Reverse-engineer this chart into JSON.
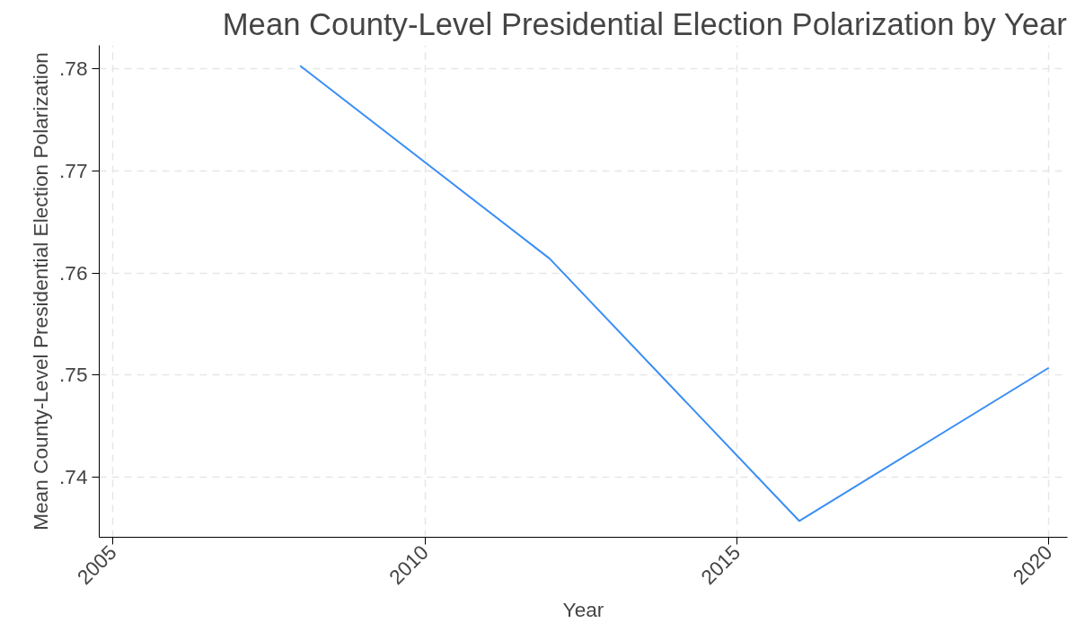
{
  "chart_data": {
    "type": "line",
    "title": "Mean County-Level Presidential Election Polarization by Year",
    "xlabel": "Year",
    "ylabel": "Mean County-Level Presidential Election Polarization",
    "x": [
      2008,
      2012,
      2016,
      2020
    ],
    "series": [
      {
        "color": "#3a8ef5",
        "values": [
          0.7803,
          0.7614,
          0.7357,
          0.7507
        ]
      }
    ],
    "xlim": [
      2004.78,
      2020.3
    ],
    "xticks": [
      2005,
      2010,
      2015,
      2020
    ],
    "ylim": [
      0.7341,
      0.7823
    ],
    "yticks": [
      {
        "value": 0.74,
        "label": ".74"
      },
      {
        "value": 0.75,
        "label": ".75"
      },
      {
        "value": 0.76,
        "label": ".76"
      },
      {
        "value": 0.77,
        "label": ".77"
      },
      {
        "value": 0.78,
        "label": ".78"
      }
    ],
    "grid": true,
    "marker": "none",
    "line_style": "solid"
  }
}
